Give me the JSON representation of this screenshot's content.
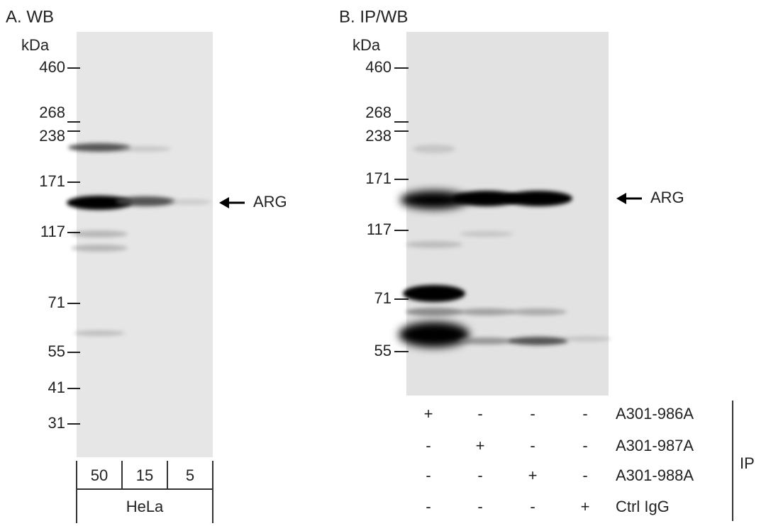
{
  "panels": [
    {
      "title": "A. WB",
      "unit": "kDa",
      "markers": [
        "460",
        "268",
        "238",
        "171",
        "117",
        "71",
        "55",
        "41",
        "31"
      ],
      "target": "ARG",
      "lanes": [
        "50",
        "15",
        "5"
      ],
      "sample": "HeLa"
    },
    {
      "title": "B. IP/WB",
      "unit": "kDa",
      "markers": [
        "460",
        "268",
        "238",
        "171",
        "117",
        "71",
        "55"
      ],
      "target": "ARG",
      "ip_rows": [
        {
          "label": "A301-986A",
          "marks": [
            "+",
            "-",
            "-",
            "-"
          ]
        },
        {
          "label": "A301-987A",
          "marks": [
            "-",
            "+",
            "-",
            "-"
          ]
        },
        {
          "label": "A301-988A",
          "marks": [
            "-",
            "-",
            "+",
            "-"
          ]
        },
        {
          "label": "Ctrl IgG",
          "marks": [
            "-",
            "-",
            "-",
            "+"
          ]
        }
      ],
      "ip_label": "IP"
    }
  ]
}
